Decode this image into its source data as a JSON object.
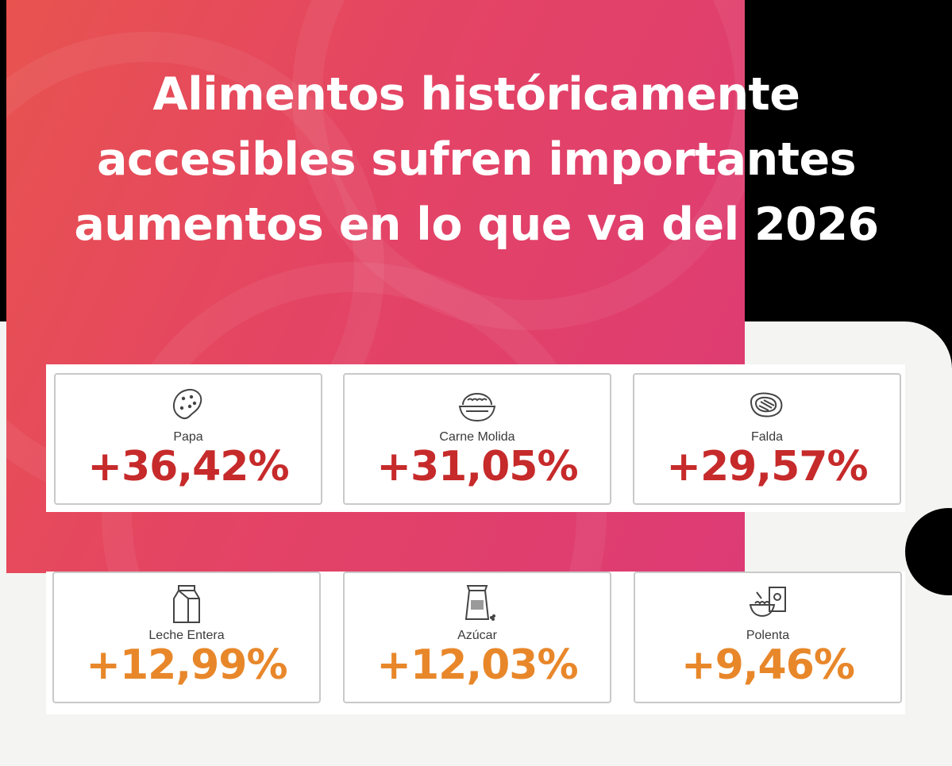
{
  "title": {
    "line1": "Alimentos históricamente",
    "line2": "accesibles sufren importantes",
    "line3": "aumentos en lo que va del 2026"
  },
  "colors": {
    "high": "#c62a2a",
    "mid": "#e8872a"
  },
  "items": [
    {
      "name": "Papa",
      "value": "+36,42%",
      "icon": "potato-icon",
      "level": "high"
    },
    {
      "name": "Carne Molida",
      "value": "+31,05%",
      "icon": "ground-meat-bowl-icon",
      "level": "high"
    },
    {
      "name": "Falda",
      "value": "+29,57%",
      "icon": "steak-icon",
      "level": "high"
    },
    {
      "name": "Leche Entera",
      "value": "+12,99%",
      "icon": "milk-carton-icon",
      "level": "mid"
    },
    {
      "name": "Azúcar",
      "value": "+12,03%",
      "icon": "sugar-bag-icon",
      "level": "mid"
    },
    {
      "name": "Polenta",
      "value": "+9,46%",
      "icon": "polenta-bowl-icon",
      "level": "mid"
    }
  ]
}
